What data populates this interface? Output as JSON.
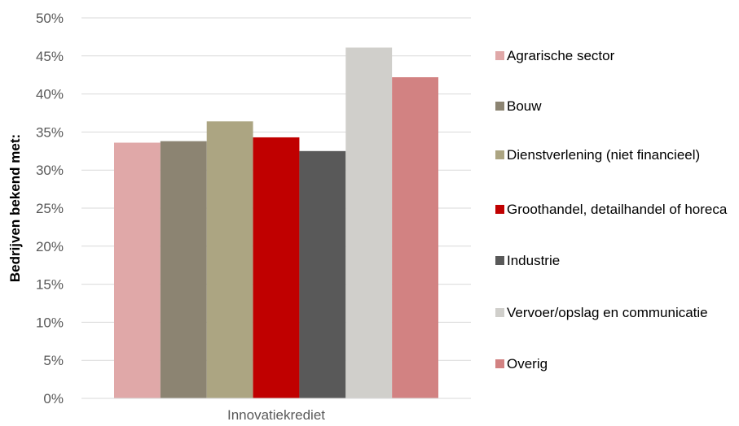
{
  "chart_data": {
    "type": "bar",
    "categories": [
      "Innovatiekrediet"
    ],
    "series": [
      {
        "name": "Agrarische sector",
        "values": [
          33.6
        ],
        "color": "#e0a8a8"
      },
      {
        "name": "Bouw",
        "values": [
          33.8
        ],
        "color": "#8c8472"
      },
      {
        "name": "Dienstverlening (niet financieel)",
        "values": [
          36.4
        ],
        "color": "#aca582"
      },
      {
        "name": "Groothandel, detailhandel of horeca",
        "values": [
          34.3
        ],
        "color": "#c00000"
      },
      {
        "name": "Industrie",
        "values": [
          32.5
        ],
        "color": "#595959"
      },
      {
        "name": "Vervoer/opslag en communicatie",
        "values": [
          46.1
        ],
        "color": "#d0cfcb"
      },
      {
        "name": "Overig",
        "values": [
          42.2
        ],
        "color": "#d28282"
      }
    ],
    "ylabel": "Bedrijven bekend met:",
    "xlabel": "",
    "ylim": [
      0,
      50
    ],
    "yticks": [
      "0%",
      "5%",
      "10%",
      "15%",
      "20%",
      "25%",
      "30%",
      "35%",
      "40%",
      "45%",
      "50%"
    ],
    "grid": true,
    "legend_position": "right"
  }
}
